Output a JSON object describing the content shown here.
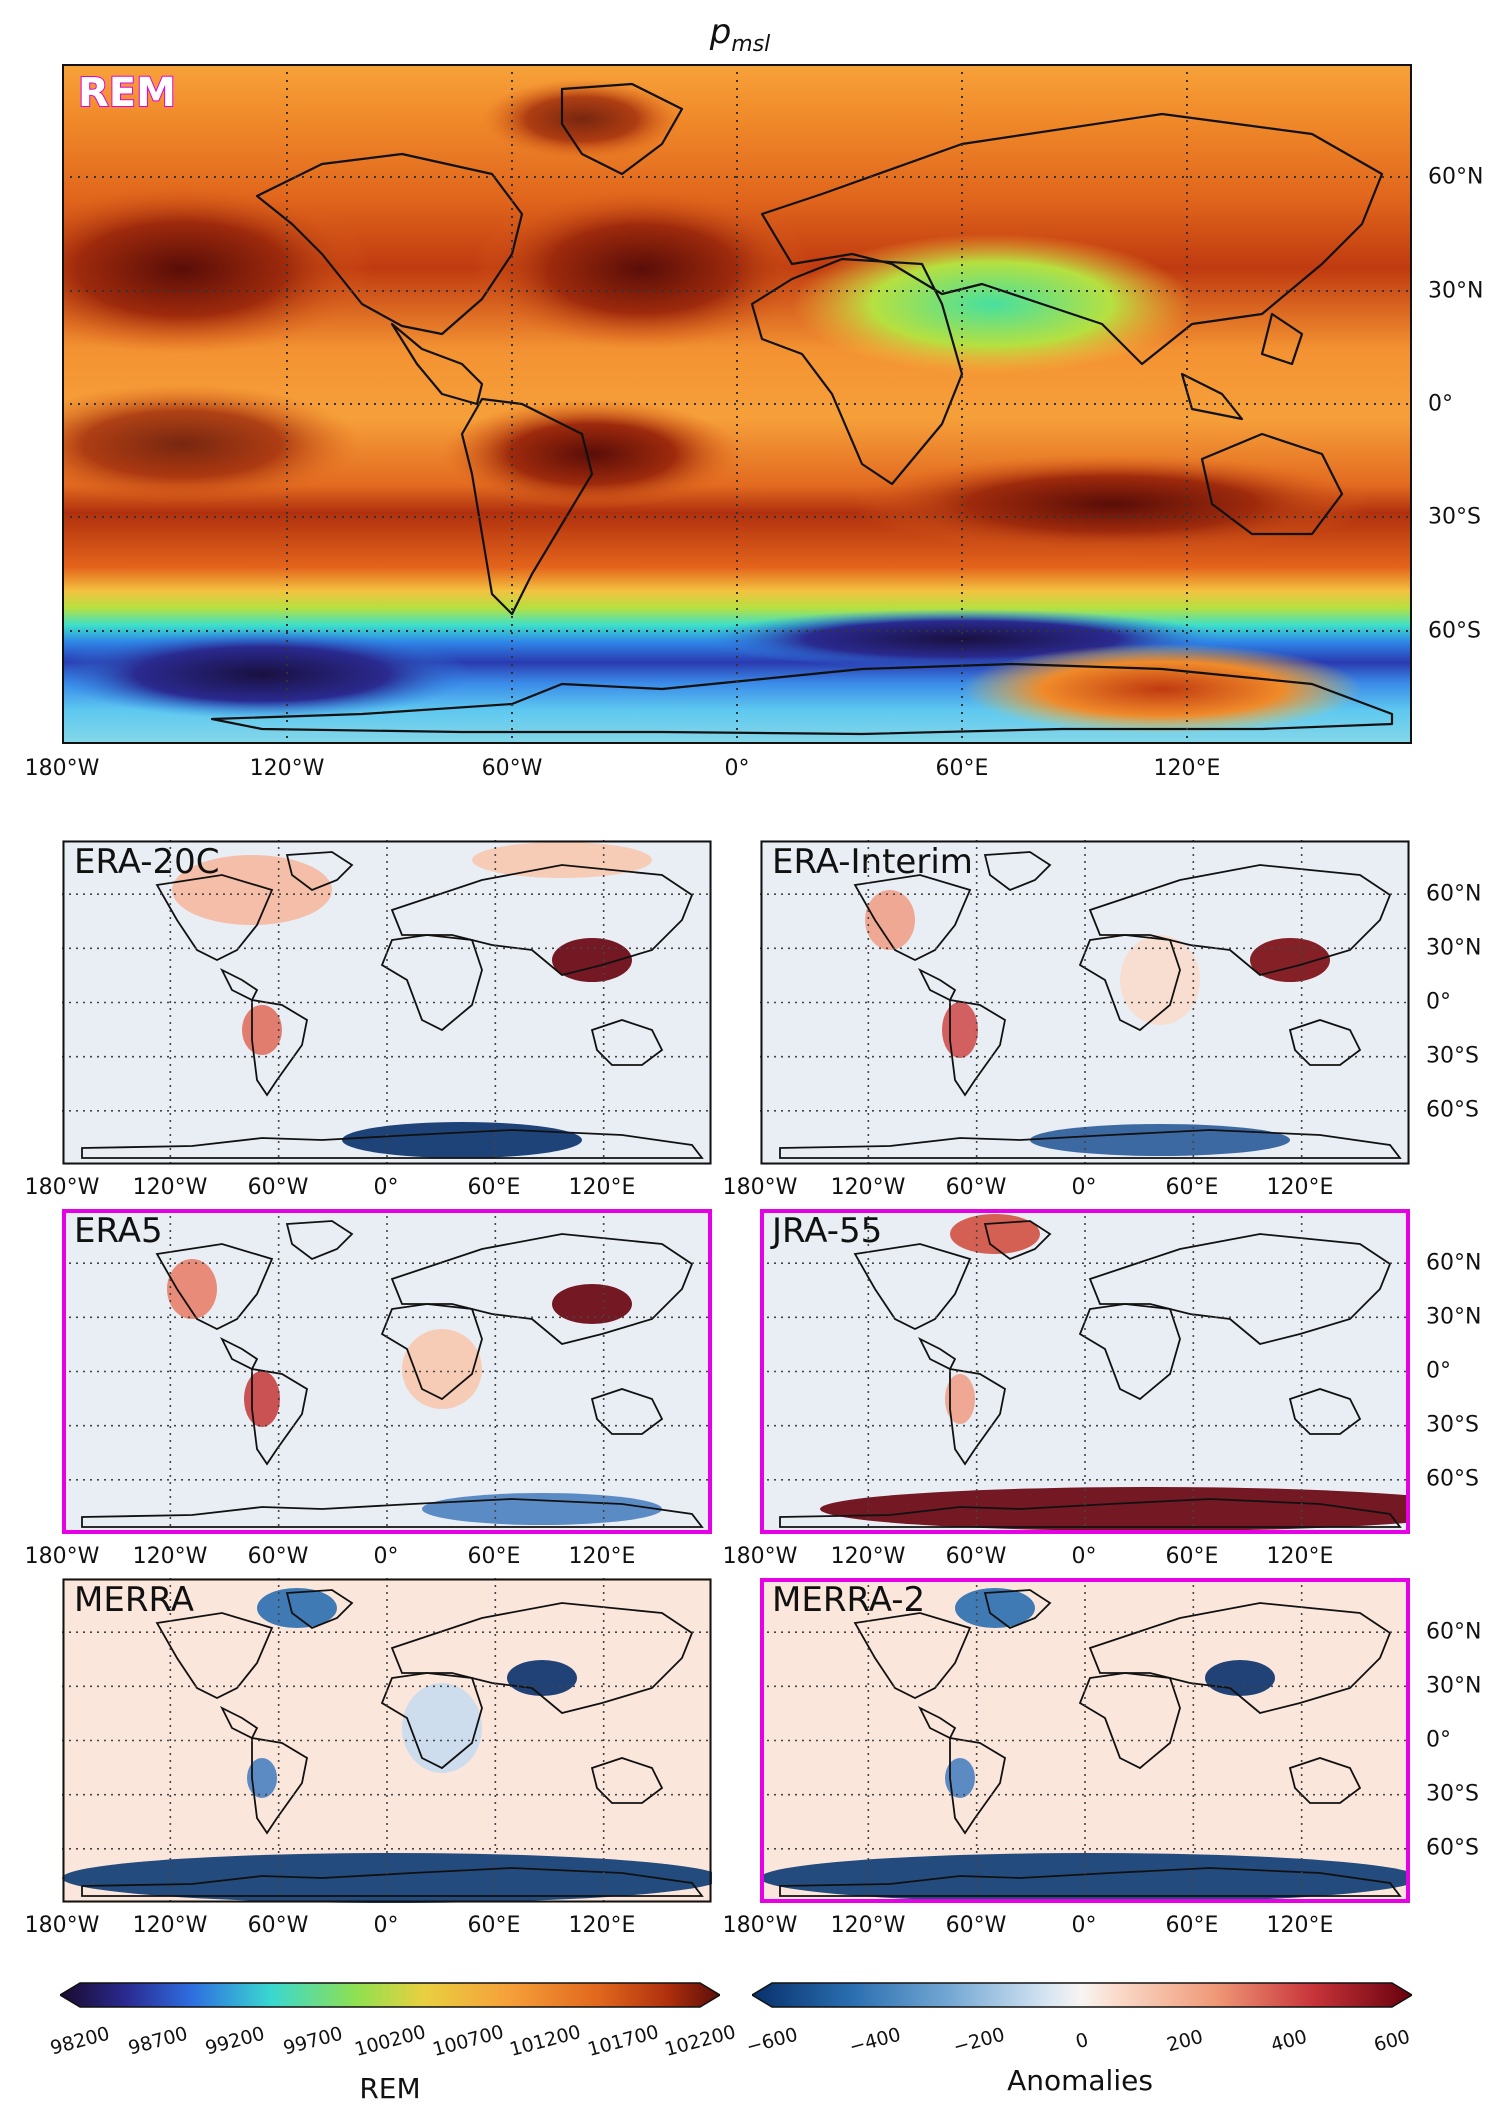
{
  "title_main": "p",
  "title_sub": "msl",
  "main_panel": {
    "label": "REM"
  },
  "panels": [
    {
      "label": "ERA-20C",
      "highlighted": false
    },
    {
      "label": "ERA-Interim",
      "highlighted": false
    },
    {
      "label": "ERA5",
      "highlighted": true
    },
    {
      "label": "JRA-55",
      "highlighted": true
    },
    {
      "label": "MERRA",
      "highlighted": false
    },
    {
      "label": "MERRA-2",
      "highlighted": true
    }
  ],
  "main_lon_ticks": [
    "180°W",
    "120°W",
    "60°W",
    "0°",
    "60°E",
    "120°E"
  ],
  "main_lat_ticks": [
    "60°N",
    "30°N",
    "0°",
    "30°S",
    "60°S"
  ],
  "small_lon_ticks": [
    "180°W",
    "120°W",
    "60°W",
    "0°",
    "60°E",
    "120°E"
  ],
  "small_lat_ticks": [
    "60°N",
    "30°N",
    "0°",
    "30°S",
    "60°S"
  ],
  "colorbar_rem": {
    "title": "REM",
    "ticks": [
      "98200",
      "98700",
      "99200",
      "99700",
      "100200",
      "100700",
      "101200",
      "101700",
      "102200"
    ]
  },
  "colorbar_anom": {
    "title": "Anomalies",
    "ticks": [
      "−600",
      "−400",
      "−200",
      "0",
      "200",
      "400",
      "600"
    ]
  },
  "colors": {
    "highlight": "#e600e6"
  }
}
